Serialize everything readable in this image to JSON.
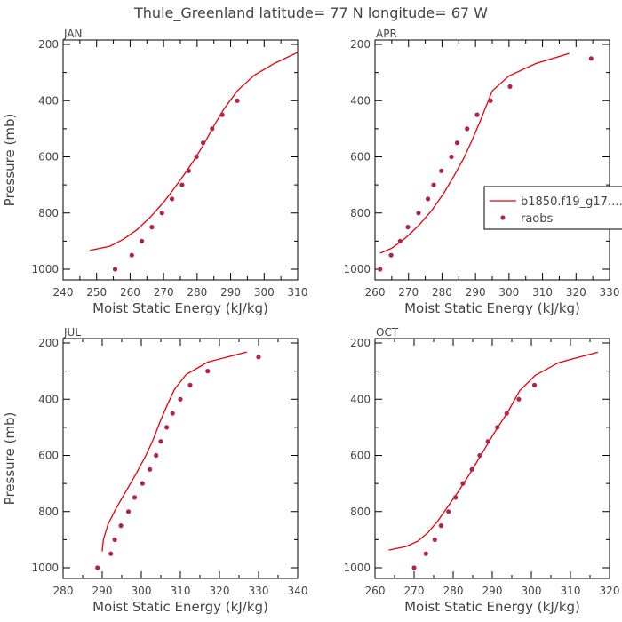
{
  "title": "Thule_Greenland  latitude= 77 N longitude= 67 W",
  "colors": {
    "model": "#e8000b",
    "raobs": "#b5224d",
    "axis": "#000000",
    "text": "#444444"
  },
  "legend": {
    "placement": "right",
    "entries": [
      {
        "label": "b1850.f19_g17.…",
        "kind": "line"
      },
      {
        "label": "raobs",
        "kind": "marker"
      }
    ]
  },
  "chart_data": [
    {
      "type": "line",
      "panel": "JAN",
      "xlabel": "Moist Static Energy (kJ/kg)",
      "ylabel": "Pressure (mb)",
      "xlim": [
        240,
        310
      ],
      "ylim": [
        1000,
        200
      ],
      "xticks": [
        240,
        250,
        260,
        270,
        280,
        290,
        300,
        310
      ],
      "yticks": [
        200,
        400,
        600,
        800,
        1000
      ],
      "series": [
        {
          "kind": "line",
          "x": [
            248,
            254,
            258,
            262,
            266,
            270,
            273,
            276,
            279,
            282,
            285,
            288,
            292,
            297,
            303,
            310
          ],
          "y": [
            933,
            918,
            893,
            860,
            815,
            762,
            715,
            665,
            613,
            555,
            490,
            430,
            365,
            310,
            268,
            228
          ]
        },
        {
          "kind": "scatter",
          "x": [
            255.5,
            260.5,
            263.5,
            266.5,
            269.5,
            272.5,
            275.5,
            277.5,
            279.8,
            281.8,
            284.5,
            287.5,
            292
          ],
          "y": [
            1000,
            950,
            900,
            850,
            800,
            750,
            700,
            650,
            600,
            550,
            500,
            450,
            400
          ]
        }
      ]
    },
    {
      "type": "line",
      "panel": "APR",
      "xlabel": "Moist Static Energy (kJ/kg)",
      "ylabel": "",
      "xlim": [
        260,
        330
      ],
      "ylim": [
        1000,
        200
      ],
      "xticks": [
        260,
        270,
        280,
        290,
        300,
        310,
        320,
        330
      ],
      "yticks": [
        200,
        400,
        600,
        800,
        1000
      ],
      "series": [
        {
          "kind": "line",
          "x": [
            261.5,
            265,
            269,
            273,
            277,
            280.5,
            283.5,
            286.5,
            289,
            291.5,
            295,
            300,
            308,
            318
          ],
          "y": [
            943,
            925,
            890,
            845,
            790,
            730,
            670,
            605,
            540,
            470,
            365,
            312,
            268,
            232
          ]
        },
        {
          "kind": "scatter",
          "x": [
            261.5,
            264.8,
            267.5,
            269.8,
            273,
            275.8,
            277.5,
            279.8,
            282.8,
            284.5,
            287.5,
            290.5,
            294.5,
            300.3,
            324.5
          ],
          "y": [
            1000,
            950,
            900,
            850,
            800,
            750,
            700,
            650,
            600,
            550,
            500,
            450,
            400,
            350,
            250
          ]
        }
      ]
    },
    {
      "type": "line",
      "panel": "JUL",
      "xlabel": "Moist Static Energy (kJ/kg)",
      "ylabel": "Pressure (mb)",
      "xlim": [
        280,
        340
      ],
      "ylim": [
        1000,
        200
      ],
      "xticks": [
        280,
        290,
        300,
        310,
        320,
        330,
        340
      ],
      "yticks": [
        200,
        400,
        600,
        800,
        1000
      ],
      "series": [
        {
          "kind": "line",
          "x": [
            290,
            290.3,
            291.5,
            293.5,
            296,
            298.5,
            301,
            303,
            304.8,
            306.5,
            308.5,
            311.5,
            317,
            327
          ],
          "y": [
            942,
            900,
            845,
            790,
            730,
            670,
            605,
            545,
            480,
            425,
            365,
            312,
            268,
            232
          ]
        },
        {
          "kind": "scatter",
          "x": [
            288.8,
            292.2,
            293.2,
            294.8,
            296.7,
            298.3,
            300.3,
            302.2,
            303.8,
            305,
            306.5,
            308,
            310,
            312.5,
            317,
            330
          ],
          "y": [
            1000,
            950,
            900,
            850,
            800,
            750,
            700,
            650,
            600,
            550,
            500,
            450,
            400,
            350,
            300,
            250
          ]
        }
      ]
    },
    {
      "type": "line",
      "panel": "OCT",
      "xlabel": "Moist Static Energy (kJ/kg)",
      "ylabel": "",
      "xlim": [
        260,
        320
      ],
      "ylim": [
        1000,
        200
      ],
      "xticks": [
        260,
        270,
        280,
        290,
        300,
        310,
        320
      ],
      "yticks": [
        200,
        400,
        600,
        800,
        1000
      ],
      "series": [
        {
          "kind": "line",
          "x": [
            263.5,
            268,
            271,
            273.5,
            276,
            278.5,
            281.5,
            284.5,
            287.5,
            290.5,
            294,
            297,
            301,
            307,
            317
          ],
          "y": [
            937,
            924,
            905,
            875,
            835,
            785,
            725,
            660,
            590,
            520,
            445,
            370,
            315,
            270,
            233
          ]
        },
        {
          "kind": "scatter",
          "x": [
            270,
            273,
            275.3,
            276.9,
            278.8,
            280.6,
            282.5,
            284.8,
            286.8,
            288.9,
            291.3,
            293.7,
            296.8,
            300.8
          ],
          "y": [
            1000,
            950,
            900,
            850,
            800,
            750,
            700,
            650,
            600,
            550,
            500,
            450,
            400,
            350
          ]
        }
      ]
    }
  ]
}
